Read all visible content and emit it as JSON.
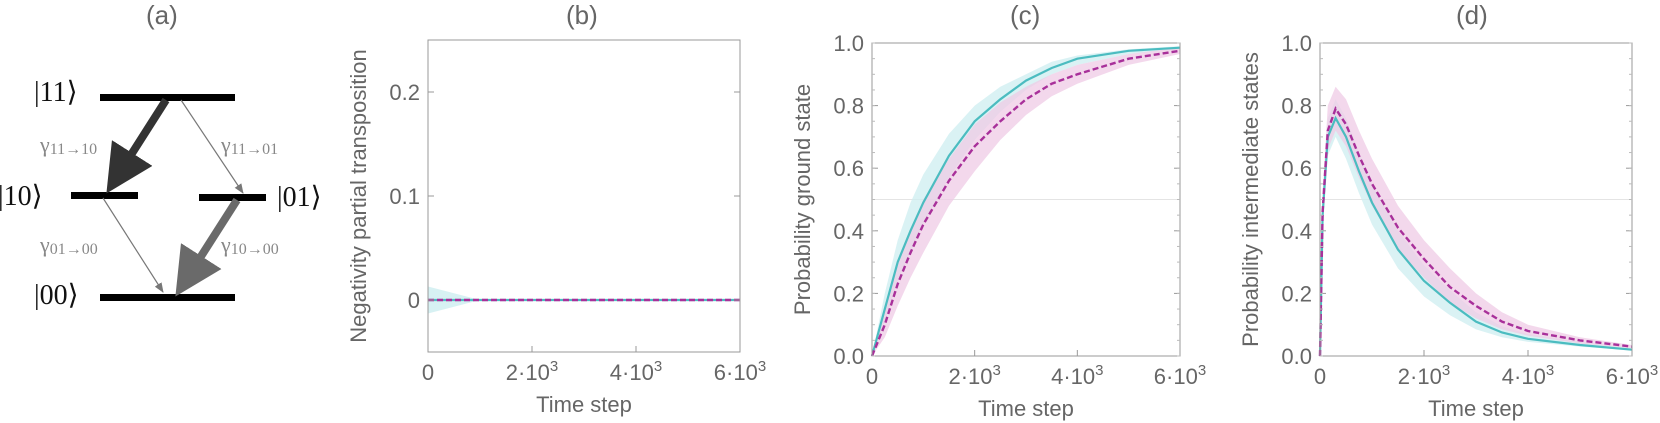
{
  "panels": {
    "a": {
      "label": "(a)"
    },
    "b": {
      "label": "(b)"
    },
    "c": {
      "label": "(c)"
    },
    "d": {
      "label": "(d)"
    }
  },
  "diagram": {
    "levels": [
      {
        "state": "|11⟩",
        "name": "level-11"
      },
      {
        "state": "|10⟩",
        "name": "level-10"
      },
      {
        "state": "|01⟩",
        "name": "level-01"
      },
      {
        "state": "|00⟩",
        "name": "level-00"
      }
    ],
    "rates": [
      {
        "symbol": "γ",
        "sub": "11→10"
      },
      {
        "symbol": "γ",
        "sub": "11→01"
      },
      {
        "symbol": "γ",
        "sub": "01→00"
      },
      {
        "symbol": "γ",
        "sub": "10→00"
      }
    ]
  },
  "colors": {
    "teal": "#4bbcc0",
    "teal_band": "#cdeef0",
    "magenta": "#a8309a",
    "magenta_band": "#efcbe6",
    "overlap_band": "#c9c9dd",
    "axis": "#999999",
    "text": "#666666"
  },
  "chart_data": [
    {
      "panel": "b",
      "type": "line",
      "title": "",
      "xlabel": "Time step",
      "ylabel": "Negativity partial transposition",
      "xlim": [
        0,
        6000
      ],
      "ylim": [
        -0.05,
        0.25
      ],
      "xticks": [
        "0",
        "2·10³",
        "4·10³",
        "6·10³"
      ],
      "yticks": [
        "0",
        "0.1",
        "0.2"
      ],
      "series": [
        {
          "name": "teal-solid",
          "x": [
            0,
            1000,
            2000,
            3000,
            4000,
            5000,
            6000
          ],
          "values": [
            0,
            0,
            0,
            0,
            0,
            0,
            0
          ],
          "band": [
            [
              -0.013,
              0.013
            ],
            [
              0,
              0
            ],
            [
              0,
              0
            ],
            [
              0,
              0
            ],
            [
              0,
              0
            ],
            [
              0,
              0
            ],
            [
              0,
              0
            ]
          ]
        },
        {
          "name": "magenta-dashed",
          "x": [
            0,
            1000,
            2000,
            3000,
            4000,
            5000,
            6000
          ],
          "values": [
            0,
            0,
            0,
            0,
            0,
            0,
            0
          ]
        }
      ]
    },
    {
      "panel": "c",
      "type": "line",
      "title": "",
      "xlabel": "Time step",
      "ylabel": "Probability ground state",
      "xlim": [
        0,
        6000
      ],
      "ylim": [
        0,
        1.0
      ],
      "xticks": [
        "0",
        "2·10³",
        "4·10³",
        "6·10³"
      ],
      "yticks": [
        "0.0",
        "0.2",
        "0.4",
        "0.6",
        "0.8",
        "1.0"
      ],
      "reference_line": 0.5,
      "series": [
        {
          "name": "teal-solid",
          "x": [
            0,
            250,
            500,
            750,
            1000,
            1500,
            2000,
            2500,
            3000,
            3500,
            4000,
            5000,
            6000
          ],
          "values": [
            0,
            0.15,
            0.3,
            0.4,
            0.49,
            0.64,
            0.75,
            0.82,
            0.88,
            0.92,
            0.95,
            0.975,
            0.985
          ],
          "lower": [
            0,
            0.11,
            0.24,
            0.33,
            0.42,
            0.57,
            0.69,
            0.78,
            0.85,
            0.9,
            0.93,
            0.965,
            0.98
          ],
          "upper": [
            0,
            0.2,
            0.37,
            0.49,
            0.58,
            0.71,
            0.8,
            0.86,
            0.9,
            0.94,
            0.96,
            0.98,
            0.99
          ]
        },
        {
          "name": "magenta-dashed",
          "x": [
            0,
            250,
            500,
            750,
            1000,
            1500,
            2000,
            2500,
            3000,
            3500,
            4000,
            5000,
            6000
          ],
          "values": [
            0,
            0.1,
            0.23,
            0.33,
            0.42,
            0.56,
            0.67,
            0.75,
            0.82,
            0.87,
            0.9,
            0.95,
            0.975
          ],
          "lower": [
            0,
            0.06,
            0.16,
            0.25,
            0.33,
            0.48,
            0.59,
            0.69,
            0.77,
            0.83,
            0.87,
            0.93,
            0.965
          ],
          "upper": [
            0,
            0.14,
            0.29,
            0.4,
            0.5,
            0.63,
            0.74,
            0.81,
            0.86,
            0.9,
            0.93,
            0.965,
            0.985
          ]
        }
      ]
    },
    {
      "panel": "d",
      "type": "line",
      "title": "",
      "xlabel": "Time step",
      "ylabel": "Probability intermediate states",
      "xlim": [
        0,
        6000
      ],
      "ylim": [
        0,
        1.0
      ],
      "xticks": [
        "0",
        "2·10³",
        "4·10³",
        "6·10³"
      ],
      "yticks": [
        "0.0",
        "0.2",
        "0.4",
        "0.6",
        "0.8",
        "1.0"
      ],
      "reference_line": 0.5,
      "series": [
        {
          "name": "teal-solid",
          "x": [
            0,
            50,
            150,
            300,
            500,
            750,
            1000,
            1500,
            2000,
            2500,
            3000,
            3500,
            4000,
            5000,
            6000
          ],
          "values": [
            0,
            0.45,
            0.7,
            0.76,
            0.7,
            0.59,
            0.49,
            0.34,
            0.24,
            0.17,
            0.11,
            0.075,
            0.055,
            0.035,
            0.02
          ],
          "lower": [
            0,
            0.4,
            0.64,
            0.7,
            0.63,
            0.52,
            0.42,
            0.28,
            0.19,
            0.13,
            0.085,
            0.06,
            0.045,
            0.03,
            0.018
          ],
          "upper": [
            0,
            0.5,
            0.76,
            0.82,
            0.76,
            0.65,
            0.55,
            0.4,
            0.29,
            0.21,
            0.14,
            0.095,
            0.07,
            0.045,
            0.025
          ]
        },
        {
          "name": "magenta-dashed",
          "x": [
            0,
            50,
            150,
            300,
            500,
            750,
            1000,
            1500,
            2000,
            2500,
            3000,
            3500,
            4000,
            5000,
            6000
          ],
          "values": [
            0,
            0.46,
            0.72,
            0.79,
            0.74,
            0.64,
            0.55,
            0.41,
            0.31,
            0.22,
            0.16,
            0.11,
            0.08,
            0.05,
            0.03
          ],
          "lower": [
            0,
            0.41,
            0.66,
            0.72,
            0.67,
            0.57,
            0.48,
            0.34,
            0.25,
            0.17,
            0.12,
            0.085,
            0.065,
            0.04,
            0.025
          ],
          "upper": [
            0,
            0.52,
            0.8,
            0.86,
            0.82,
            0.72,
            0.63,
            0.48,
            0.37,
            0.28,
            0.2,
            0.14,
            0.1,
            0.06,
            0.035
          ]
        }
      ]
    }
  ]
}
